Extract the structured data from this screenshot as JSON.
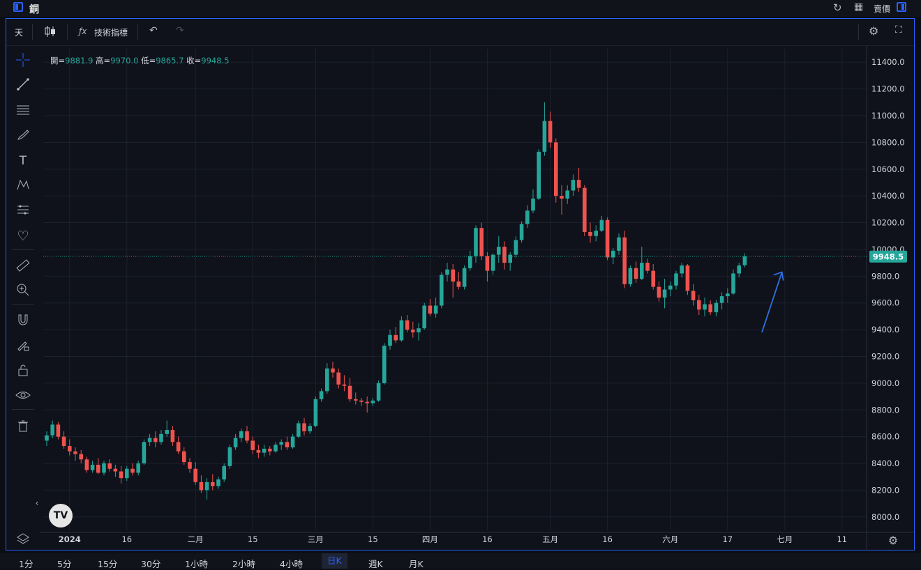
{
  "window": {
    "title": "銅",
    "price_mode": "賣價"
  },
  "toolbar": {
    "interval": "天",
    "indicators": "技術指標"
  },
  "ohlc": {
    "open_label": "開=",
    "open": "9881.9",
    "high_label": "高=",
    "high": "9970.0",
    "low_label": "低=",
    "low": "9865.7",
    "close_label": "收=",
    "close": "9948.5"
  },
  "colors": {
    "up": "#26a69a",
    "down": "#ef5350",
    "accent": "#2962ff",
    "background": "#0f121a"
  },
  "left_tools": [
    "crosshair-icon",
    "trendline-icon",
    "fib-icon",
    "brush-icon",
    "text-icon",
    "pattern-icon",
    "forecast-icon",
    "heart-icon",
    "ruler-icon",
    "zoom-icon",
    "magnet-icon",
    "lock-draw-icon",
    "lock-icon",
    "eye-icon",
    "trash-icon"
  ],
  "timeframes": [
    "1分",
    "5分",
    "15分",
    "30分",
    "1小時",
    "2小時",
    "4小時",
    "日K",
    "週K",
    "月K"
  ],
  "active_timeframe": "日K",
  "chart_data": {
    "type": "candlestick",
    "ylim": [
      7900,
      11500
    ],
    "y_ticks": [
      8000,
      8200,
      8400,
      8600,
      8800,
      9000,
      9200,
      9400,
      9600,
      9800,
      10000,
      10200,
      10400,
      10600,
      10800,
      11000,
      11200,
      11400
    ],
    "y_tick_labels": [
      "8000.0",
      "8200.0",
      "8400.0",
      "8600.0",
      "8800.0",
      "9000.0",
      "9200.0",
      "9400.0",
      "9600.0",
      "9800.0",
      "10000.0",
      "10200.0",
      "10400.0",
      "10600.0",
      "10800.0",
      "11000.0",
      "11200.0",
      "11400.0"
    ],
    "x_labels": [
      {
        "label": "2024",
        "idx": 4
      },
      {
        "label": "16",
        "idx": 14
      },
      {
        "label": "二月",
        "idx": 26
      },
      {
        "label": "15",
        "idx": 36
      },
      {
        "label": "三月",
        "idx": 47
      },
      {
        "label": "15",
        "idx": 57
      },
      {
        "label": "四月",
        "idx": 67
      },
      {
        "label": "16",
        "idx": 77
      },
      {
        "label": "五月",
        "idx": 88
      },
      {
        "label": "16",
        "idx": 98
      },
      {
        "label": "六月",
        "idx": 109
      },
      {
        "label": "17",
        "idx": 119
      },
      {
        "label": "七月",
        "idx": 129
      },
      {
        "label": "11",
        "idx": 139
      }
    ],
    "last_price": "9948.5",
    "candles": [
      [
        8570,
        8640,
        8530,
        8610
      ],
      [
        8610,
        8720,
        8590,
        8690
      ],
      [
        8690,
        8710,
        8580,
        8600
      ],
      [
        8600,
        8640,
        8510,
        8530
      ],
      [
        8530,
        8580,
        8460,
        8490
      ],
      [
        8490,
        8520,
        8420,
        8470
      ],
      [
        8470,
        8500,
        8400,
        8430
      ],
      [
        8430,
        8450,
        8330,
        8350
      ],
      [
        8350,
        8420,
        8330,
        8390
      ],
      [
        8390,
        8440,
        8320,
        8330
      ],
      [
        8330,
        8420,
        8310,
        8400
      ],
      [
        8400,
        8430,
        8340,
        8360
      ],
      [
        8360,
        8390,
        8300,
        8340
      ],
      [
        8340,
        8380,
        8250,
        8290
      ],
      [
        8290,
        8380,
        8270,
        8360
      ],
      [
        8360,
        8400,
        8310,
        8330
      ],
      [
        8330,
        8420,
        8310,
        8400
      ],
      [
        8400,
        8580,
        8390,
        8560
      ],
      [
        8560,
        8620,
        8530,
        8590
      ],
      [
        8590,
        8640,
        8520,
        8560
      ],
      [
        8560,
        8650,
        8540,
        8620
      ],
      [
        8620,
        8720,
        8600,
        8650
      ],
      [
        8650,
        8680,
        8530,
        8560
      ],
      [
        8560,
        8600,
        8470,
        8490
      ],
      [
        8490,
        8520,
        8390,
        8410
      ],
      [
        8410,
        8440,
        8330,
        8360
      ],
      [
        8360,
        8410,
        8240,
        8260
      ],
      [
        8260,
        8310,
        8180,
        8200
      ],
      [
        8200,
        8290,
        8130,
        8260
      ],
      [
        8260,
        8320,
        8200,
        8230
      ],
      [
        8230,
        8300,
        8210,
        8280
      ],
      [
        8280,
        8400,
        8260,
        8380
      ],
      [
        8380,
        8540,
        8360,
        8520
      ],
      [
        8520,
        8620,
        8500,
        8590
      ],
      [
        8590,
        8660,
        8560,
        8640
      ],
      [
        8640,
        8680,
        8550,
        8570
      ],
      [
        8570,
        8600,
        8470,
        8500
      ],
      [
        8500,
        8540,
        8440,
        8480
      ],
      [
        8480,
        8540,
        8450,
        8510
      ],
      [
        8510,
        8530,
        8460,
        8490
      ],
      [
        8490,
        8560,
        8480,
        8540
      ],
      [
        8540,
        8580,
        8500,
        8560
      ],
      [
        8560,
        8600,
        8500,
        8520
      ],
      [
        8520,
        8620,
        8510,
        8600
      ],
      [
        8600,
        8720,
        8590,
        8700
      ],
      [
        8700,
        8740,
        8610,
        8640
      ],
      [
        8640,
        8700,
        8620,
        8680
      ],
      [
        8680,
        8900,
        8670,
        8880
      ],
      [
        8880,
        8960,
        8860,
        8940
      ],
      [
        8940,
        9150,
        8920,
        9110
      ],
      [
        9110,
        9160,
        9040,
        9080
      ],
      [
        9080,
        9110,
        8960,
        8990
      ],
      [
        8990,
        9060,
        8940,
        8980
      ],
      [
        8980,
        9040,
        8860,
        8880
      ],
      [
        8880,
        8930,
        8840,
        8870
      ],
      [
        8870,
        8890,
        8830,
        8860
      ],
      [
        8860,
        8900,
        8780,
        8850
      ],
      [
        8850,
        8890,
        8830,
        8870
      ],
      [
        8870,
        9020,
        8860,
        9000
      ],
      [
        9000,
        9300,
        8990,
        9280
      ],
      [
        9280,
        9400,
        9250,
        9360
      ],
      [
        9360,
        9420,
        9300,
        9320
      ],
      [
        9320,
        9500,
        9310,
        9470
      ],
      [
        9470,
        9510,
        9380,
        9400
      ],
      [
        9400,
        9460,
        9340,
        9380
      ],
      [
        9380,
        9450,
        9320,
        9410
      ],
      [
        9410,
        9600,
        9400,
        9580
      ],
      [
        9580,
        9630,
        9500,
        9520
      ],
      [
        9520,
        9640,
        9490,
        9580
      ],
      [
        9580,
        9830,
        9560,
        9810
      ],
      [
        9810,
        9900,
        9760,
        9850
      ],
      [
        9850,
        9890,
        9640,
        9760
      ],
      [
        9760,
        9830,
        9700,
        9720
      ],
      [
        9720,
        9880,
        9700,
        9860
      ],
      [
        9860,
        9990,
        9840,
        9950
      ],
      [
        9950,
        10180,
        9900,
        10160
      ],
      [
        10160,
        10200,
        9920,
        9950
      ],
      [
        9950,
        9980,
        9760,
        9840
      ],
      [
        9840,
        9970,
        9810,
        9960
      ],
      [
        9960,
        10100,
        9900,
        10020
      ],
      [
        10020,
        10060,
        9850,
        9900
      ],
      [
        9900,
        9980,
        9840,
        9960
      ],
      [
        9960,
        10100,
        9940,
        10070
      ],
      [
        10070,
        10210,
        10050,
        10190
      ],
      [
        10190,
        10330,
        10160,
        10290
      ],
      [
        10290,
        10450,
        10270,
        10380
      ],
      [
        10380,
        10750,
        10370,
        10730
      ],
      [
        10730,
        11100,
        10700,
        10960
      ],
      [
        10960,
        11030,
        10760,
        10800
      ],
      [
        10800,
        10830,
        10350,
        10400
      ],
      [
        10400,
        10480,
        10260,
        10380
      ],
      [
        10380,
        10480,
        10340,
        10440
      ],
      [
        10440,
        10560,
        10400,
        10520
      ],
      [
        10520,
        10610,
        10430,
        10460
      ],
      [
        10460,
        10480,
        10100,
        10130
      ],
      [
        10130,
        10200,
        10050,
        10100
      ],
      [
        10100,
        10180,
        10060,
        10140
      ],
      [
        10140,
        10250,
        10130,
        10220
      ],
      [
        10220,
        10240,
        9920,
        9940
      ],
      [
        9940,
        10010,
        9890,
        9990
      ],
      [
        9990,
        10120,
        9960,
        10090
      ],
      [
        10090,
        10140,
        9710,
        9740
      ],
      [
        9740,
        9880,
        9720,
        9860
      ],
      [
        9860,
        9910,
        9750,
        9780
      ],
      [
        9780,
        10020,
        9770,
        9900
      ],
      [
        9900,
        9930,
        9820,
        9840
      ],
      [
        9840,
        9890,
        9700,
        9720
      ],
      [
        9720,
        9760,
        9610,
        9640
      ],
      [
        9640,
        9780,
        9560,
        9700
      ],
      [
        9700,
        9760,
        9650,
        9730
      ],
      [
        9730,
        9840,
        9700,
        9820
      ],
      [
        9820,
        9900,
        9790,
        9880
      ],
      [
        9880,
        9890,
        9660,
        9690
      ],
      [
        9690,
        9740,
        9580,
        9620
      ],
      [
        9620,
        9660,
        9510,
        9550
      ],
      [
        9550,
        9640,
        9500,
        9590
      ],
      [
        9590,
        9620,
        9510,
        9530
      ],
      [
        9530,
        9620,
        9500,
        9600
      ],
      [
        9600,
        9680,
        9550,
        9650
      ],
      [
        9650,
        9710,
        9600,
        9670
      ],
      [
        9670,
        9850,
        9660,
        9820
      ],
      [
        9820,
        9900,
        9790,
        9880
      ],
      [
        9881.9,
        9970,
        9865.7,
        9948.5
      ]
    ]
  }
}
